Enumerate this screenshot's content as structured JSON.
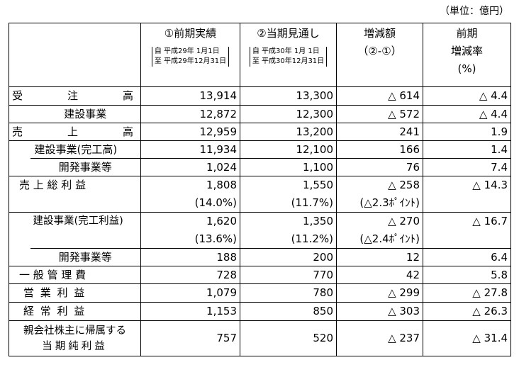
{
  "unit": "（単位：億円）",
  "header": {
    "col1": "①前期実績",
    "col1_from": "自 平成29年 1月1日",
    "col1_to": "至 平成29年12月31日",
    "col2": "②当期見通し",
    "col2_from": "自 平成30年 1月 1日",
    "col2_to": "至 平成30年12月31日",
    "col3_a": "増減額",
    "col3_b": "（②-①）",
    "col4_a": "前期",
    "col4_b": "増減率",
    "col4_c": "(%)"
  },
  "rows": {
    "orders": {
      "l1": "受",
      "l2": "注",
      "l3": "高",
      "v1": "13,914",
      "v2": "13,300",
      "v3": "△ 614",
      "v4": "△ 4.4"
    },
    "orders_const": {
      "label": "建設事業",
      "v1": "12,872",
      "v2": "12,300",
      "v3": "△ 572",
      "v4": "△ 4.4"
    },
    "sales": {
      "l1": "売",
      "l2": "上",
      "l3": "高",
      "v1": "12,959",
      "v2": "13,200",
      "v3": "241",
      "v4": "1.9"
    },
    "sales_const": {
      "label": "建設事業(完工高)",
      "v1": "11,934",
      "v2": "12,100",
      "v3": "166",
      "v4": "1.4"
    },
    "sales_dev": {
      "label": "開発事業等",
      "v1": "1,024",
      "v2": "1,100",
      "v3": "76",
      "v4": "7.4"
    },
    "gross": {
      "label": "売 上 総 利 益",
      "v1": "1,808",
      "v2": "1,550",
      "v3": "△ 258",
      "v4": "△ 14.3",
      "p1": "(14.0%)",
      "p2": "(11.7%)",
      "p3": "(△2.3ﾎﾟｲﾝﾄ)"
    },
    "gross_const": {
      "label": "建設事業(完工利益)",
      "v1": "1,620",
      "v2": "1,350",
      "v3": "△ 270",
      "v4": "△ 16.7",
      "p1": "(13.6%)",
      "p2": "(11.2%)",
      "p3": "(△2.4ﾎﾟｲﾝﾄ)"
    },
    "gross_dev": {
      "label": "開発事業等",
      "v1": "188",
      "v2": "200",
      "v3": "12",
      "v4": "6.4"
    },
    "sga": {
      "label": "一 般 管 理 費",
      "v1": "728",
      "v2": "770",
      "v3": "42",
      "v4": "5.8"
    },
    "op": {
      "label": "営 業 利 益",
      "v1": "1,079",
      "v2": "780",
      "v3": "△ 299",
      "v4": "△ 27.8"
    },
    "ord": {
      "label": "経 常 利 益",
      "v1": "1,153",
      "v2": "850",
      "v3": "△ 303",
      "v4": "△ 26.3"
    },
    "net": {
      "label1": "親会社株主に帰属する",
      "label2": "当期純利益",
      "v1": "757",
      "v2": "520",
      "v3": "△ 237",
      "v4": "△ 31.4"
    }
  }
}
